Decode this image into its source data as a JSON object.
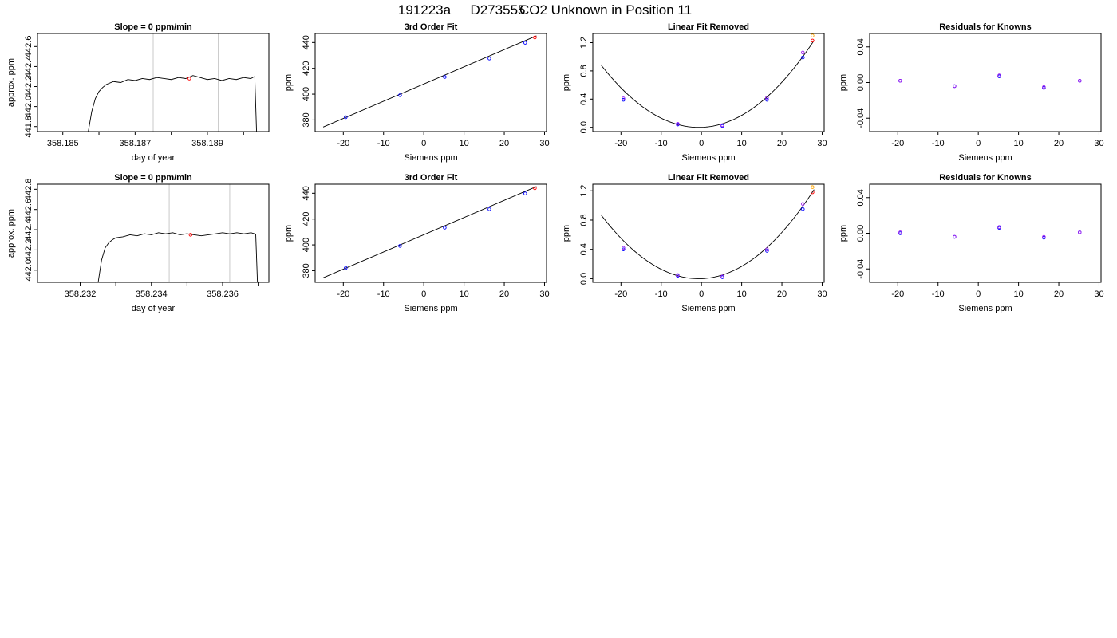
{
  "figure": {
    "title_parts": [
      "191223a",
      "D273555",
      "CO2 Unknown in Position  11"
    ]
  },
  "chart_data": [
    {
      "type": "line",
      "title": "Slope =  0  ppm/min",
      "xlabel": "day of year",
      "ylabel": "approx. ppm",
      "xlim": [
        358.1843,
        358.1907
      ],
      "ylim": [
        441.75,
        442.73
      ],
      "xticks": [
        358.185,
        358.186,
        358.187,
        358.188,
        358.189,
        358.19
      ],
      "xtick_labels": [
        "358.185",
        "",
        "358.187",
        "",
        "358.189",
        ""
      ],
      "yticks": [
        441.8,
        442.0,
        442.2,
        442.4,
        442.6
      ],
      "ytick_labels": [
        "441.8",
        "442.0",
        "442.2",
        "442.4",
        "442.6"
      ],
      "vlines": [
        358.1875,
        358.1893
      ],
      "series": [
        {
          "x": [
            358.1857,
            358.1858,
            358.1859,
            358.186,
            358.1861,
            358.1862,
            358.1864,
            358.1866,
            358.1868,
            358.187,
            358.1872,
            358.1874,
            358.1876,
            358.1878,
            358.188,
            358.1882,
            358.1884,
            358.1886,
            358.1888,
            358.189,
            358.1892,
            358.1894,
            358.1896,
            358.1898,
            358.19,
            358.1902,
            358.1903
          ],
          "y": [
            441.74,
            441.95,
            442.08,
            442.15,
            442.19,
            442.22,
            442.25,
            442.24,
            442.27,
            442.26,
            442.28,
            442.27,
            442.29,
            442.28,
            442.27,
            442.29,
            442.28,
            442.31,
            442.29,
            442.27,
            442.28,
            442.26,
            442.28,
            442.27,
            442.29,
            442.28,
            442.3
          ]
        },
        {
          "x": [
            358.19031,
            358.19036
          ],
          "y": [
            442.3,
            441.74
          ]
        }
      ],
      "points": [
        {
          "x": 358.1885,
          "y": 442.28,
          "color": "#ff0000"
        }
      ]
    },
    {
      "type": "scatter",
      "title": "3rd Order Fit",
      "xlabel": "Siemens ppm",
      "ylabel": "ppm",
      "xlim": [
        -27,
        30.5
      ],
      "ylim": [
        371,
        447
      ],
      "xticks": [
        -20,
        -10,
        0,
        10,
        20,
        30
      ],
      "xtick_labels": [
        "-20",
        "-10",
        "0",
        "10",
        "20",
        "30"
      ],
      "yticks": [
        380,
        400,
        420,
        440
      ],
      "ytick_labels": [
        "380",
        "400",
        "420",
        "440"
      ],
      "curve": {
        "x": [
          -25,
          28
        ],
        "y": [
          374.5,
          445.2
        ]
      },
      "points": [
        {
          "x": -19.4,
          "y": 382.1,
          "color": "#0000ff"
        },
        {
          "x": -5.9,
          "y": 399.2,
          "color": "#0000ff"
        },
        {
          "x": 5.2,
          "y": 413.3,
          "color": "#0000ff"
        },
        {
          "x": 16.3,
          "y": 427.6,
          "color": "#0000ff"
        },
        {
          "x": 25.2,
          "y": 439.8,
          "color": "#0000ff"
        },
        {
          "x": 27.6,
          "y": 443.9,
          "color": "#ff0000"
        }
      ]
    },
    {
      "type": "scatter",
      "title": "Linear Fit Removed",
      "xlabel": "Siemens ppm",
      "ylabel": "ppm",
      "xlim": [
        -27,
        30.5
      ],
      "ylim": [
        -0.06,
        1.33
      ],
      "xticks": [
        -20,
        -10,
        0,
        10,
        20,
        30
      ],
      "xtick_labels": [
        "-20",
        "-10",
        "0",
        "10",
        "20",
        "30"
      ],
      "yticks": [
        0.0,
        0.4,
        0.8,
        1.2
      ],
      "ytick_labels": [
        "0.0",
        "0.4",
        "0.8",
        "1.2"
      ],
      "curve_poly": {
        "a": 0.0015,
        "b": 0.002,
        "c": 0,
        "x0": -25,
        "x1": 28
      },
      "points": [
        {
          "x": -19.4,
          "y": 0.39,
          "color": "#0000ff"
        },
        {
          "x": -19.4,
          "y": 0.41,
          "color": "#a020f0"
        },
        {
          "x": -5.9,
          "y": 0.04,
          "color": "#0000ff"
        },
        {
          "x": -5.9,
          "y": 0.05,
          "color": "#a020f0"
        },
        {
          "x": 5.2,
          "y": 0.02,
          "color": "#0000ff"
        },
        {
          "x": 5.2,
          "y": 0.03,
          "color": "#a020f0"
        },
        {
          "x": 16.3,
          "y": 0.39,
          "color": "#0000ff"
        },
        {
          "x": 16.3,
          "y": 0.42,
          "color": "#a020f0"
        },
        {
          "x": 25.2,
          "y": 0.99,
          "color": "#0000ff"
        },
        {
          "x": 25.2,
          "y": 1.06,
          "color": "#a020f0"
        },
        {
          "x": 27.6,
          "y": 1.23,
          "color": "#ff0000"
        },
        {
          "x": 27.6,
          "y": 1.3,
          "color": "#ffa500"
        }
      ]
    },
    {
      "type": "scatter",
      "title": "Residuals for Knowns",
      "xlabel": "Siemens ppm",
      "ylabel": "ppm",
      "xlim": [
        -27,
        30.5
      ],
      "ylim": [
        -0.055,
        0.055
      ],
      "xticks": [
        -20,
        -10,
        0,
        10,
        20,
        30
      ],
      "xtick_labels": [
        "-20",
        "-10",
        "0",
        "10",
        "20",
        "30"
      ],
      "yticks": [
        -0.04,
        0.0,
        0.04
      ],
      "ytick_labels": [
        "-0.04",
        "0.00",
        "0.04"
      ],
      "points": [
        {
          "x": -19.4,
          "y": 0.002,
          "color": "#0000ff"
        },
        {
          "x": -19.4,
          "y": 0.002,
          "color": "#a020f0"
        },
        {
          "x": -5.9,
          "y": -0.004,
          "color": "#0000ff"
        },
        {
          "x": -5.9,
          "y": -0.004,
          "color": "#a020f0"
        },
        {
          "x": 5.2,
          "y": 0.007,
          "color": "#0000ff"
        },
        {
          "x": 5.2,
          "y": 0.008,
          "color": "#a020f0"
        },
        {
          "x": 16.3,
          "y": -0.006,
          "color": "#0000ff"
        },
        {
          "x": 16.3,
          "y": -0.005,
          "color": "#a020f0"
        },
        {
          "x": 25.2,
          "y": 0.002,
          "color": "#0000ff"
        },
        {
          "x": 25.2,
          "y": 0.002,
          "color": "#a020f0"
        }
      ]
    },
    {
      "type": "line",
      "title": "Slope =  0  ppm/min",
      "xlabel": "day of year",
      "ylabel": "approx. ppm",
      "xlim": [
        358.2308,
        358.2373
      ],
      "ylim": [
        441.88,
        442.85
      ],
      "xticks": [
        358.232,
        358.233,
        358.234,
        358.235,
        358.236,
        358.237
      ],
      "xtick_labels": [
        "358.232",
        "",
        "358.234",
        "",
        "358.236",
        ""
      ],
      "yticks": [
        442.0,
        442.2,
        442.4,
        442.6,
        442.8
      ],
      "ytick_labels": [
        "442.0",
        "442.2",
        "442.4",
        "442.6",
        "442.8"
      ],
      "vlines": [
        358.2345,
        358.2362
      ],
      "series": [
        {
          "x": [
            358.2325,
            358.2326,
            358.2327,
            358.2328,
            358.2329,
            358.233,
            358.2332,
            358.2334,
            358.2336,
            358.2338,
            358.234,
            358.2342,
            358.2344,
            358.2346,
            358.2348,
            358.235,
            358.2352,
            358.2354,
            358.2356,
            358.2358,
            358.236,
            358.2362,
            358.2364,
            358.2366,
            358.2368,
            358.2369
          ],
          "y": [
            441.87,
            442.1,
            442.22,
            442.27,
            442.3,
            442.32,
            442.33,
            442.35,
            442.34,
            442.36,
            442.35,
            442.37,
            442.36,
            442.37,
            442.35,
            442.36,
            442.35,
            442.34,
            442.35,
            442.36,
            442.37,
            442.36,
            442.37,
            442.36,
            442.37,
            442.36
          ]
        },
        {
          "x": [
            358.23693,
            358.23698
          ],
          "y": [
            442.36,
            441.87
          ]
        }
      ],
      "points": [
        {
          "x": 358.2351,
          "y": 442.35,
          "color": "#ff0000"
        }
      ]
    },
    {
      "type": "scatter",
      "title": "3rd Order Fit",
      "xlabel": "Siemens ppm",
      "ylabel": "ppm",
      "xlim": [
        -27,
        30.5
      ],
      "ylim": [
        371,
        447
      ],
      "xticks": [
        -20,
        -10,
        0,
        10,
        20,
        30
      ],
      "xtick_labels": [
        "-20",
        "-10",
        "0",
        "10",
        "20",
        "30"
      ],
      "yticks": [
        380,
        400,
        420,
        440
      ],
      "ytick_labels": [
        "380",
        "400",
        "420",
        "440"
      ],
      "curve": {
        "x": [
          -25,
          28
        ],
        "y": [
          374.5,
          445.2
        ]
      },
      "points": [
        {
          "x": -19.4,
          "y": 382.1,
          "color": "#0000ff"
        },
        {
          "x": -5.9,
          "y": 399.2,
          "color": "#0000ff"
        },
        {
          "x": 5.2,
          "y": 413.3,
          "color": "#0000ff"
        },
        {
          "x": 16.3,
          "y": 427.6,
          "color": "#0000ff"
        },
        {
          "x": 25.2,
          "y": 439.8,
          "color": "#0000ff"
        },
        {
          "x": 27.6,
          "y": 443.9,
          "color": "#ff0000"
        }
      ]
    },
    {
      "type": "scatter",
      "title": "Linear Fit Removed",
      "xlabel": "Siemens ppm",
      "ylabel": "ppm",
      "xlim": [
        -27,
        30.5
      ],
      "ylim": [
        -0.05,
        1.29
      ],
      "xticks": [
        -20,
        -10,
        0,
        10,
        20,
        30
      ],
      "xtick_labels": [
        "-20",
        "-10",
        "0",
        "10",
        "20",
        "30"
      ],
      "yticks": [
        0.0,
        0.4,
        0.8,
        1.2
      ],
      "ytick_labels": [
        "0.0",
        "0.4",
        "0.8",
        "1.2"
      ],
      "curve_poly": {
        "a": 0.00148,
        "b": 0.002,
        "c": 0,
        "x0": -25,
        "x1": 28
      },
      "points": [
        {
          "x": -19.4,
          "y": 0.4,
          "color": "#0000ff"
        },
        {
          "x": -19.4,
          "y": 0.42,
          "color": "#a020f0"
        },
        {
          "x": -5.9,
          "y": 0.04,
          "color": "#0000ff"
        },
        {
          "x": -5.9,
          "y": 0.05,
          "color": "#a020f0"
        },
        {
          "x": 5.2,
          "y": 0.02,
          "color": "#0000ff"
        },
        {
          "x": 5.2,
          "y": 0.03,
          "color": "#a020f0"
        },
        {
          "x": 16.3,
          "y": 0.38,
          "color": "#0000ff"
        },
        {
          "x": 16.3,
          "y": 0.4,
          "color": "#a020f0"
        },
        {
          "x": 25.2,
          "y": 0.95,
          "color": "#0000ff"
        },
        {
          "x": 25.2,
          "y": 1.02,
          "color": "#a020f0"
        },
        {
          "x": 27.6,
          "y": 1.18,
          "color": "#ff0000"
        },
        {
          "x": 27.6,
          "y": 1.25,
          "color": "#ffa500"
        }
      ]
    },
    {
      "type": "scatter",
      "title": "Residuals for Knowns",
      "xlabel": "Siemens ppm",
      "ylabel": "ppm",
      "xlim": [
        -27,
        30.5
      ],
      "ylim": [
        -0.055,
        0.055
      ],
      "xticks": [
        -20,
        -10,
        0,
        10,
        20,
        30
      ],
      "xtick_labels": [
        "-20",
        "-10",
        "0",
        "10",
        "20",
        "30"
      ],
      "yticks": [
        -0.04,
        0.0,
        0.04
      ],
      "ytick_labels": [
        "-0.04",
        "0.00",
        "0.04"
      ],
      "points": [
        {
          "x": -19.4,
          "y": 0.0,
          "color": "#0000ff"
        },
        {
          "x": -19.4,
          "y": 0.001,
          "color": "#a020f0"
        },
        {
          "x": -5.9,
          "y": -0.004,
          "color": "#0000ff"
        },
        {
          "x": -5.9,
          "y": -0.004,
          "color": "#a020f0"
        },
        {
          "x": 5.2,
          "y": 0.006,
          "color": "#0000ff"
        },
        {
          "x": 5.2,
          "y": 0.007,
          "color": "#a020f0"
        },
        {
          "x": 16.3,
          "y": -0.005,
          "color": "#0000ff"
        },
        {
          "x": 16.3,
          "y": -0.004,
          "color": "#a020f0"
        },
        {
          "x": 25.2,
          "y": 0.001,
          "color": "#0000ff"
        },
        {
          "x": 25.2,
          "y": 0.001,
          "color": "#a020f0"
        }
      ]
    }
  ]
}
